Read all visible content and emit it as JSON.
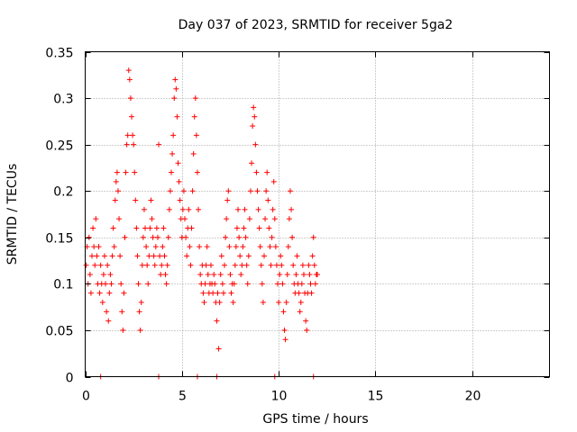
{
  "chart_data": {
    "type": "scatter",
    "title": "Day 037 of 2023, SRMTID for receiver 5ga2",
    "xlabel": "GPS time / hours",
    "ylabel": "SRMTID / TECUs",
    "xlim": [
      0,
      24
    ],
    "ylim": [
      0,
      0.35
    ],
    "xticks": [
      0,
      5,
      10,
      15,
      20
    ],
    "yticks": [
      0,
      0.05,
      0.1,
      0.15,
      0.2,
      0.25,
      0.3,
      0.35
    ],
    "xtick_labels": [
      "0",
      "5",
      "10",
      "15",
      "20"
    ],
    "ytick_labels": [
      "0",
      "0.05",
      "0.1",
      "0.15",
      "0.2",
      "0.25",
      "0.3",
      "0.35"
    ],
    "grid": true,
    "marker": "+",
    "series": [
      {
        "name": "SRMTID",
        "color": "#ff0000",
        "points": [
          [
            0.05,
            0.12
          ],
          [
            0.1,
            0.14
          ],
          [
            0.15,
            0.1
          ],
          [
            0.2,
            0.15
          ],
          [
            0.25,
            0.11
          ],
          [
            0.3,
            0.09
          ],
          [
            0.35,
            0.13
          ],
          [
            0.4,
            0.16
          ],
          [
            0.45,
            0.14
          ],
          [
            0.5,
            0.12
          ],
          [
            0.55,
            0.17
          ],
          [
            0.6,
            0.13
          ],
          [
            0.65,
            0.1
          ],
          [
            0.7,
            0.14
          ],
          [
            0.75,
            0.09
          ],
          [
            0.8,
            0.12
          ],
          [
            0.85,
            0.1
          ],
          [
            0.9,
            0.08
          ],
          [
            0.95,
            0.11
          ],
          [
            1.0,
            0.13
          ],
          [
            1.05,
            0.1
          ],
          [
            1.1,
            0.07
          ],
          [
            1.15,
            0.12
          ],
          [
            1.2,
            0.06
          ],
          [
            1.25,
            0.09
          ],
          [
            1.3,
            0.11
          ],
          [
            1.35,
            0.1
          ],
          [
            1.4,
            0.13
          ],
          [
            1.45,
            0.16
          ],
          [
            1.5,
            0.14
          ],
          [
            1.55,
            0.19
          ],
          [
            1.6,
            0.21
          ],
          [
            1.65,
            0.22
          ],
          [
            1.7,
            0.2
          ],
          [
            1.75,
            0.17
          ],
          [
            1.8,
            0.13
          ],
          [
            1.85,
            0.1
          ],
          [
            1.9,
            0.07
          ],
          [
            1.95,
            0.05
          ],
          [
            2.0,
            0.09
          ],
          [
            2.05,
            0.15
          ],
          [
            2.1,
            0.22
          ],
          [
            2.15,
            0.25
          ],
          [
            2.2,
            0.26
          ],
          [
            2.25,
            0.33
          ],
          [
            2.3,
            0.32
          ],
          [
            2.35,
            0.3
          ],
          [
            2.4,
            0.28
          ],
          [
            2.45,
            0.26
          ],
          [
            2.5,
            0.25
          ],
          [
            2.55,
            0.22
          ],
          [
            2.6,
            0.19
          ],
          [
            2.65,
            0.16
          ],
          [
            2.7,
            0.13
          ],
          [
            2.75,
            0.1
          ],
          [
            2.8,
            0.07
          ],
          [
            2.85,
            0.05
          ],
          [
            2.9,
            0.08
          ],
          [
            2.95,
            0.12
          ],
          [
            3.0,
            0.15
          ],
          [
            3.05,
            0.18
          ],
          [
            3.1,
            0.16
          ],
          [
            3.15,
            0.14
          ],
          [
            3.2,
            0.12
          ],
          [
            3.25,
            0.1
          ],
          [
            3.3,
            0.13
          ],
          [
            3.35,
            0.16
          ],
          [
            3.4,
            0.19
          ],
          [
            3.45,
            0.17
          ],
          [
            3.5,
            0.15
          ],
          [
            3.55,
            0.13
          ],
          [
            3.6,
            0.12
          ],
          [
            3.65,
            0.14
          ],
          [
            3.7,
            0.16
          ],
          [
            3.75,
            0.15
          ],
          [
            3.8,
            0.25
          ],
          [
            3.85,
            0.13
          ],
          [
            3.9,
            0.11
          ],
          [
            3.95,
            0.12
          ],
          [
            4.0,
            0.14
          ],
          [
            4.05,
            0.16
          ],
          [
            4.1,
            0.13
          ],
          [
            4.15,
            0.11
          ],
          [
            4.2,
            0.1
          ],
          [
            4.25,
            0.12
          ],
          [
            4.3,
            0.15
          ],
          [
            4.35,
            0.18
          ],
          [
            4.4,
            0.2
          ],
          [
            4.45,
            0.22
          ],
          [
            4.5,
            0.24
          ],
          [
            4.55,
            0.26
          ],
          [
            4.6,
            0.3
          ],
          [
            4.65,
            0.32
          ],
          [
            4.7,
            0.31
          ],
          [
            4.75,
            0.28
          ],
          [
            4.8,
            0.23
          ],
          [
            4.85,
            0.21
          ],
          [
            4.9,
            0.19
          ],
          [
            4.95,
            0.17
          ],
          [
            5.0,
            0.15
          ],
          [
            5.05,
            0.18
          ],
          [
            5.1,
            0.2
          ],
          [
            5.15,
            0.17
          ],
          [
            5.2,
            0.15
          ],
          [
            5.25,
            0.13
          ],
          [
            5.3,
            0.16
          ],
          [
            5.35,
            0.18
          ],
          [
            5.4,
            0.14
          ],
          [
            5.45,
            0.12
          ],
          [
            5.5,
            0.16
          ],
          [
            5.55,
            0.2
          ],
          [
            5.6,
            0.24
          ],
          [
            5.65,
            0.28
          ],
          [
            5.7,
            0.3
          ],
          [
            5.75,
            0.26
          ],
          [
            5.8,
            0.22
          ],
          [
            5.85,
            0.18
          ],
          [
            5.9,
            0.14
          ],
          [
            5.95,
            0.11
          ],
          [
            6.0,
            0.1
          ],
          [
            6.05,
            0.12
          ],
          [
            6.1,
            0.09
          ],
          [
            6.15,
            0.08
          ],
          [
            6.2,
            0.1
          ],
          [
            6.25,
            0.12
          ],
          [
            6.3,
            0.14
          ],
          [
            6.35,
            0.11
          ],
          [
            6.4,
            0.09
          ],
          [
            6.45,
            0.1
          ],
          [
            6.5,
            0.12
          ],
          [
            6.55,
            0.1
          ],
          [
            6.6,
            0.09
          ],
          [
            6.65,
            0.11
          ],
          [
            6.7,
            0.1
          ],
          [
            6.75,
            0.08
          ],
          [
            6.8,
            0.06
          ],
          [
            6.85,
            0.09
          ],
          [
            6.9,
            0.03
          ],
          [
            6.95,
            0.08
          ],
          [
            7.0,
            0.11
          ],
          [
            7.05,
            0.13
          ],
          [
            7.1,
            0.1
          ],
          [
            7.15,
            0.09
          ],
          [
            7.2,
            0.12
          ],
          [
            7.25,
            0.15
          ],
          [
            7.3,
            0.17
          ],
          [
            7.35,
            0.19
          ],
          [
            7.4,
            0.2
          ],
          [
            7.45,
            0.14
          ],
          [
            7.5,
            0.11
          ],
          [
            7.55,
            0.09
          ],
          [
            7.6,
            0.1
          ],
          [
            7.65,
            0.08
          ],
          [
            7.7,
            0.1
          ],
          [
            7.75,
            0.12
          ],
          [
            7.8,
            0.14
          ],
          [
            7.85,
            0.16
          ],
          [
            7.9,
            0.18
          ],
          [
            7.95,
            0.15
          ],
          [
            8.0,
            0.13
          ],
          [
            8.05,
            0.11
          ],
          [
            8.1,
            0.12
          ],
          [
            8.15,
            0.14
          ],
          [
            8.2,
            0.16
          ],
          [
            8.25,
            0.18
          ],
          [
            8.3,
            0.15
          ],
          [
            8.35,
            0.12
          ],
          [
            8.4,
            0.1
          ],
          [
            8.45,
            0.13
          ],
          [
            8.5,
            0.17
          ],
          [
            8.55,
            0.2
          ],
          [
            8.6,
            0.23
          ],
          [
            8.65,
            0.27
          ],
          [
            8.7,
            0.29
          ],
          [
            8.75,
            0.28
          ],
          [
            8.8,
            0.25
          ],
          [
            8.85,
            0.22
          ],
          [
            8.9,
            0.2
          ],
          [
            8.95,
            0.18
          ],
          [
            9.0,
            0.16
          ],
          [
            9.05,
            0.14
          ],
          [
            9.1,
            0.12
          ],
          [
            9.15,
            0.1
          ],
          [
            9.2,
            0.08
          ],
          [
            9.25,
            0.13
          ],
          [
            9.3,
            0.17
          ],
          [
            9.35,
            0.2
          ],
          [
            9.4,
            0.22
          ],
          [
            9.45,
            0.19
          ],
          [
            9.5,
            0.16
          ],
          [
            9.55,
            0.14
          ],
          [
            9.6,
            0.12
          ],
          [
            9.65,
            0.15
          ],
          [
            9.7,
            0.18
          ],
          [
            9.75,
            0.21
          ],
          [
            9.8,
            0.17
          ],
          [
            9.85,
            0.14
          ],
          [
            9.9,
            0.12
          ],
          [
            9.95,
            0.1
          ],
          [
            10.0,
            0.08
          ],
          [
            10.05,
            0.11
          ],
          [
            10.1,
            0.13
          ],
          [
            10.15,
            0.12
          ],
          [
            10.2,
            0.1
          ],
          [
            10.25,
            0.07
          ],
          [
            10.3,
            0.05
          ],
          [
            10.35,
            0.04
          ],
          [
            10.4,
            0.08
          ],
          [
            10.45,
            0.11
          ],
          [
            10.5,
            0.14
          ],
          [
            10.55,
            0.17
          ],
          [
            10.6,
            0.2
          ],
          [
            10.65,
            0.18
          ],
          [
            10.7,
            0.15
          ],
          [
            10.75,
            0.12
          ],
          [
            10.8,
            0.1
          ],
          [
            10.85,
            0.09
          ],
          [
            10.9,
            0.11
          ],
          [
            10.95,
            0.13
          ],
          [
            11.0,
            0.1
          ],
          [
            11.05,
            0.09
          ],
          [
            11.1,
            0.07
          ],
          [
            11.15,
            0.08
          ],
          [
            11.2,
            0.1
          ],
          [
            11.25,
            0.12
          ],
          [
            11.3,
            0.11
          ],
          [
            11.35,
            0.09
          ],
          [
            11.4,
            0.06
          ],
          [
            11.45,
            0.05
          ],
          [
            11.5,
            0.09
          ],
          [
            11.55,
            0.12
          ],
          [
            11.6,
            0.11
          ],
          [
            11.65,
            0.1
          ],
          [
            11.7,
            0.09
          ],
          [
            11.75,
            0.13
          ],
          [
            11.8,
            0.15
          ],
          [
            11.85,
            0.12
          ],
          [
            11.9,
            0.1
          ],
          [
            11.95,
            0.11
          ],
          [
            12.0,
            0.11
          ],
          [
            0.8,
            0
          ],
          [
            3.8,
            0
          ],
          [
            5.8,
            0
          ],
          [
            6.8,
            0
          ],
          [
            9.8,
            0
          ],
          [
            11.8,
            0
          ]
        ]
      }
    ]
  }
}
